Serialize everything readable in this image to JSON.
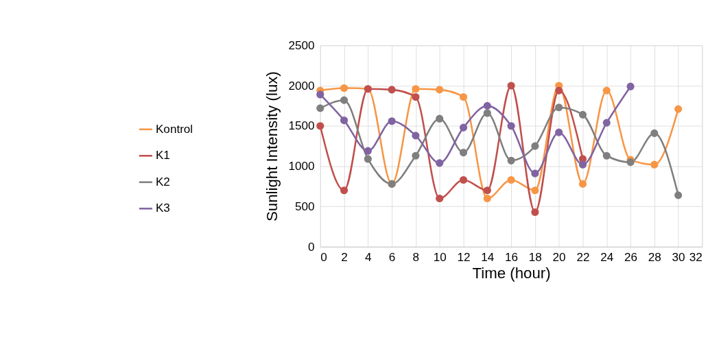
{
  "chart_data": {
    "type": "line",
    "xlabel": "Time (hour)",
    "ylabel": "Sunlight Intensity (lux)",
    "x": [
      0,
      2,
      4,
      6,
      8,
      10,
      12,
      14,
      16,
      18,
      20,
      22,
      24,
      26,
      28,
      30
    ],
    "series": [
      {
        "name": "Kontrol",
        "color": "#f79646",
        "values": [
          1940,
          1970,
          1960,
          780,
          1960,
          1950,
          1860,
          600,
          830,
          700,
          2000,
          780,
          1940,
          1080,
          1020,
          1710
        ]
      },
      {
        "name": "K1",
        "color": "#c0504d",
        "values": [
          1500,
          700,
          1960,
          1950,
          1860,
          600,
          830,
          700,
          2000,
          430,
          1940,
          1090,
          null,
          null,
          null,
          null
        ]
      },
      {
        "name": "K2",
        "color": "#7f7f7f",
        "values": [
          1720,
          1820,
          1090,
          780,
          1130,
          1590,
          1170,
          1660,
          1070,
          1250,
          1730,
          1640,
          1130,
          1050,
          1410,
          640
        ]
      },
      {
        "name": "K3",
        "color": "#8064a2",
        "values": [
          1890,
          1570,
          1190,
          1560,
          1380,
          1040,
          1480,
          1750,
          1500,
          910,
          1420,
          1020,
          1540,
          1990,
          null,
          null
        ]
      }
    ],
    "xlim": [
      0,
      32
    ],
    "xticks": [
      0,
      2,
      4,
      6,
      8,
      10,
      12,
      14,
      16,
      18,
      20,
      22,
      24,
      26,
      28,
      30,
      32
    ],
    "ylim": [
      0,
      2500
    ],
    "yticks": [
      0,
      500,
      1000,
      1500,
      2000,
      2500
    ],
    "grid": true,
    "legend": "left",
    "marker": "circle",
    "line_style": "solid"
  }
}
